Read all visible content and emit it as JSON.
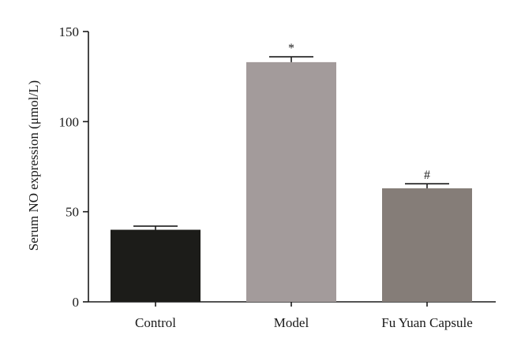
{
  "chart_data": {
    "type": "bar",
    "title": "",
    "xlabel": "",
    "ylabel": "Serum NO expression (μmol/L)",
    "ylim": [
      0,
      150
    ],
    "yticks": [
      0,
      50,
      100,
      150
    ],
    "grid": false,
    "categories": [
      "Control",
      "Model",
      "Fu Yuan Capsule"
    ],
    "values": [
      40,
      133,
      63
    ],
    "errors": [
      2,
      3,
      2.5
    ],
    "annotations": [
      "",
      "*",
      "#"
    ],
    "colors": [
      "#1c1c19",
      "#a39b9b",
      "#857d78"
    ]
  }
}
